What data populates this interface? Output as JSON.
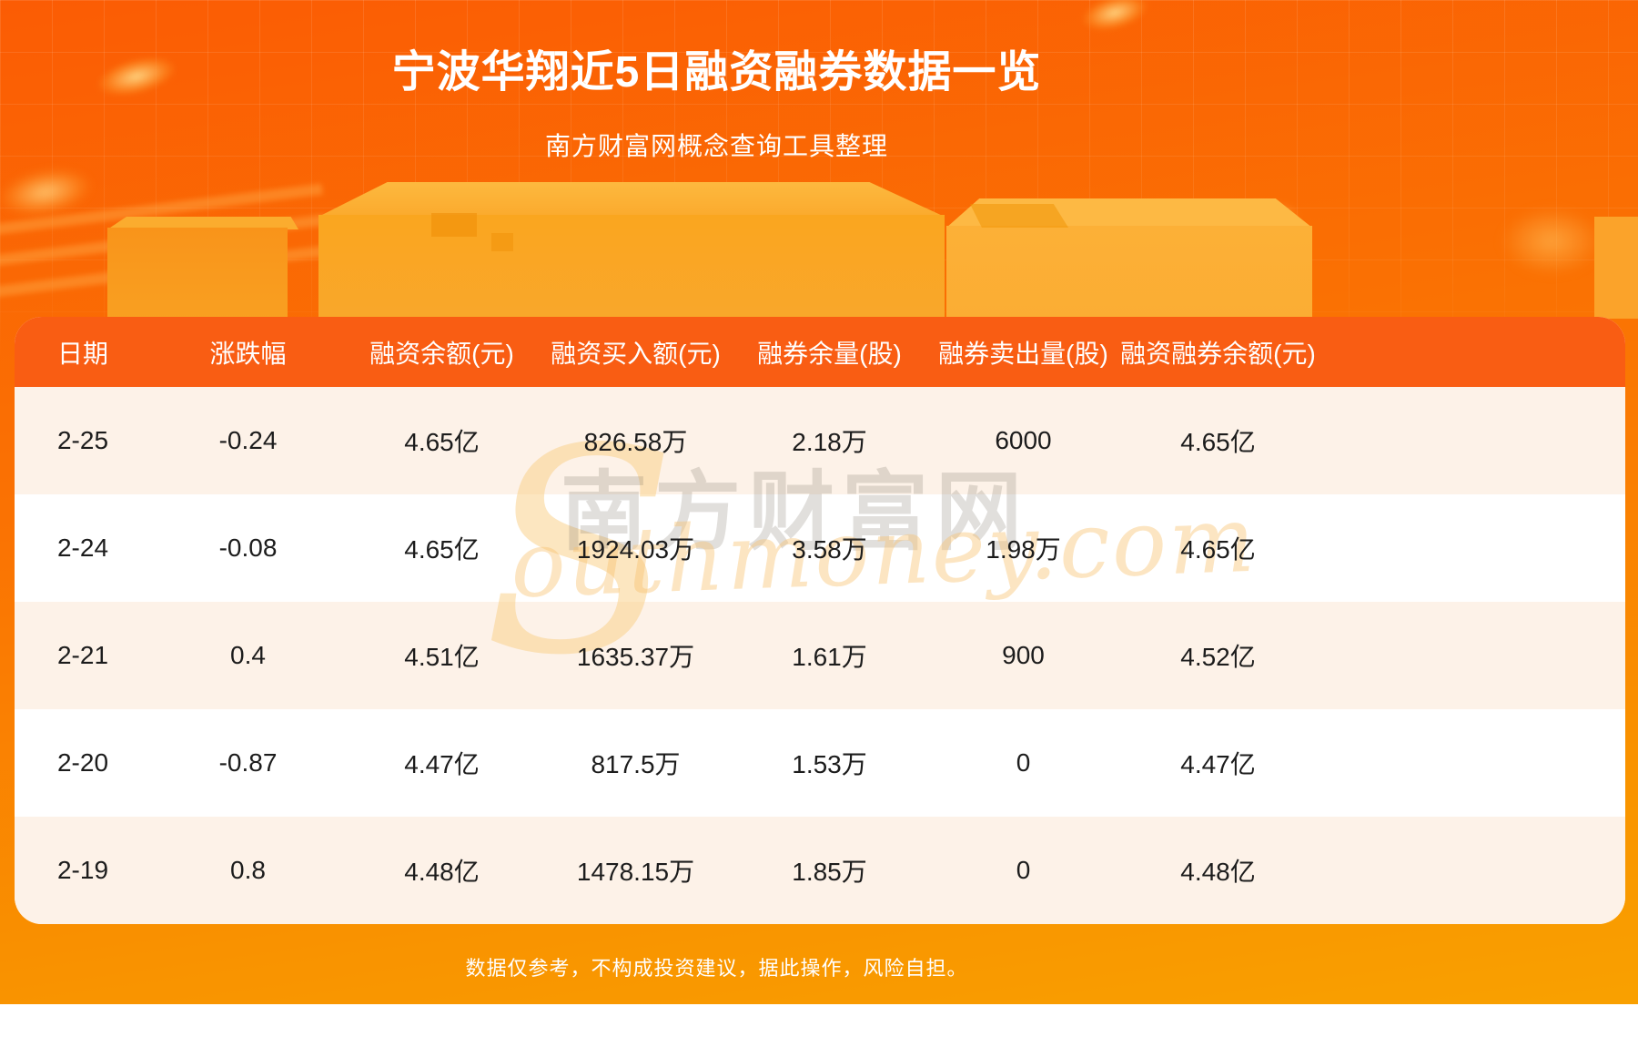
{
  "header": {
    "title": "宁波华翔近5日融资融券数据一览",
    "subtitle": "南方财富网概念查询工具整理"
  },
  "table": {
    "columns": [
      "日期",
      "涨跌幅",
      "融资余额(元)",
      "融资买入额(元)",
      "融券余量(股)",
      "融券卖出量(股)",
      "融资融券余额(元)"
    ],
    "rows": [
      [
        "2-25",
        "-0.24",
        "4.65亿",
        "826.58万",
        "2.18万",
        "6000",
        "4.65亿"
      ],
      [
        "2-24",
        "-0.08",
        "4.65亿",
        "1924.03万",
        "3.58万",
        "1.98万",
        "4.65亿"
      ],
      [
        "2-21",
        "0.4",
        "4.51亿",
        "1635.37万",
        "1.61万",
        "900",
        "4.52亿"
      ],
      [
        "2-20",
        "-0.87",
        "4.47亿",
        "817.5万",
        "1.53万",
        "0",
        "4.47亿"
      ],
      [
        "2-19",
        "0.8",
        "4.48亿",
        "1478.15万",
        "1.85万",
        "0",
        "4.48亿"
      ]
    ]
  },
  "watermark": {
    "swoosh": "S",
    "brand": "南方财富网",
    "script": "outhmoney.com"
  },
  "footer": {
    "disclaimer": "数据仅参考，不构成投资建议，据此操作，风险自担。"
  },
  "colors": {
    "background_top": "#fb5c04",
    "background_bottom": "#f9a300",
    "table_header_bg": "#f95d13",
    "row_alt_bg": "#fdf2e8",
    "row_bg": "#ffffff",
    "cell_text": "#1c1c1c",
    "title_text": "#ffffff"
  }
}
